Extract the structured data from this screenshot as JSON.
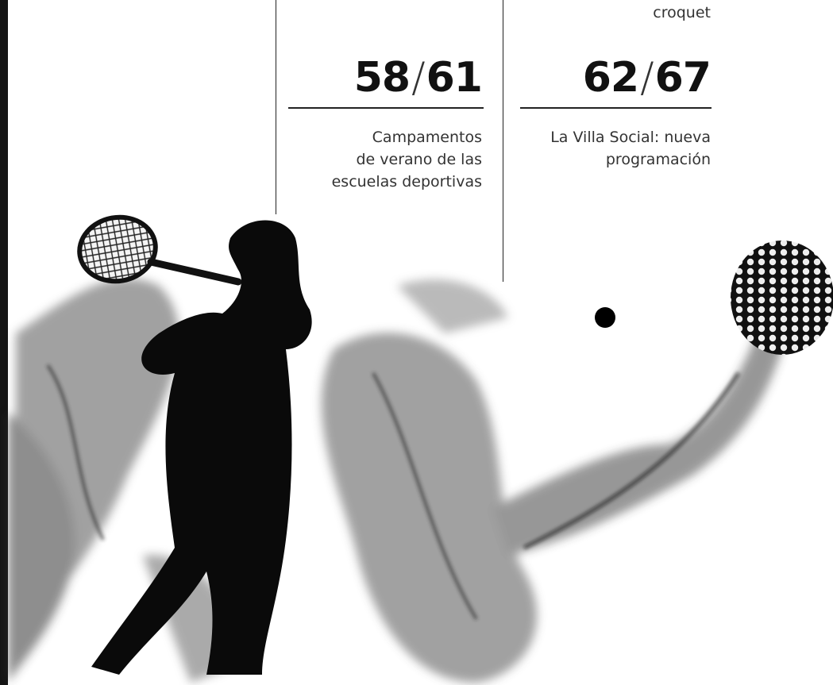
{
  "items": [
    {
      "caption": [
        "croquet"
      ]
    },
    {
      "pages": {
        "from": "58",
        "sep": "/",
        "to": "61"
      },
      "caption": [
        "Campamentos",
        "de verano de las",
        "escuelas deportivas"
      ]
    },
    {
      "pages": {
        "from": "62",
        "sep": "/",
        "to": "67"
      },
      "caption": [
        "La Villa Social: nueva",
        "programación"
      ]
    }
  ]
}
